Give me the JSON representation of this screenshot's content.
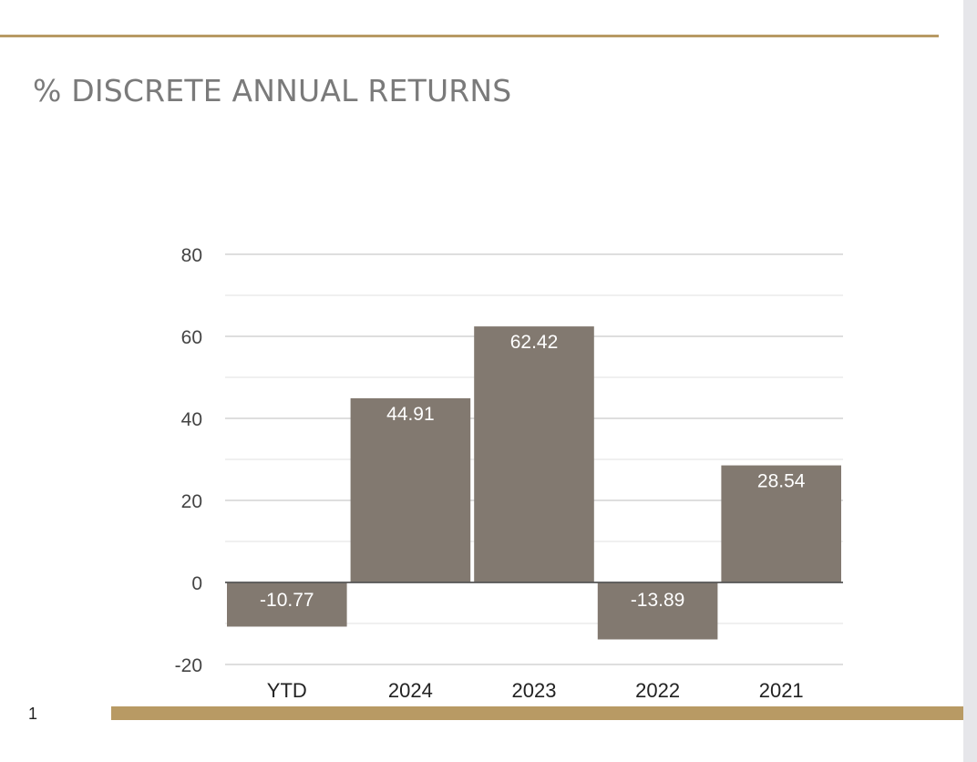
{
  "page": {
    "title": "% DISCRETE ANNUAL RETURNS",
    "page_number": "1"
  },
  "colors": {
    "accent": "#b89a64",
    "bar": "#827970",
    "grid": "#d4d4d4",
    "minor_grid": "#ececec",
    "title": "#7a7a7a"
  },
  "chart_data": {
    "type": "bar",
    "categories": [
      "YTD",
      "2024",
      "2023",
      "2022",
      "2021"
    ],
    "values": [
      -10.77,
      44.91,
      62.42,
      -13.89,
      28.54
    ],
    "data_labels": [
      "-10.77",
      "44.91",
      "62.42",
      "-13.89",
      "28.54"
    ],
    "title": "",
    "xlabel": "",
    "ylabel": "",
    "ylim": [
      -20,
      80
    ],
    "yticks": [
      -20,
      0,
      20,
      40,
      60,
      80
    ],
    "grid": true,
    "legend": "none"
  }
}
